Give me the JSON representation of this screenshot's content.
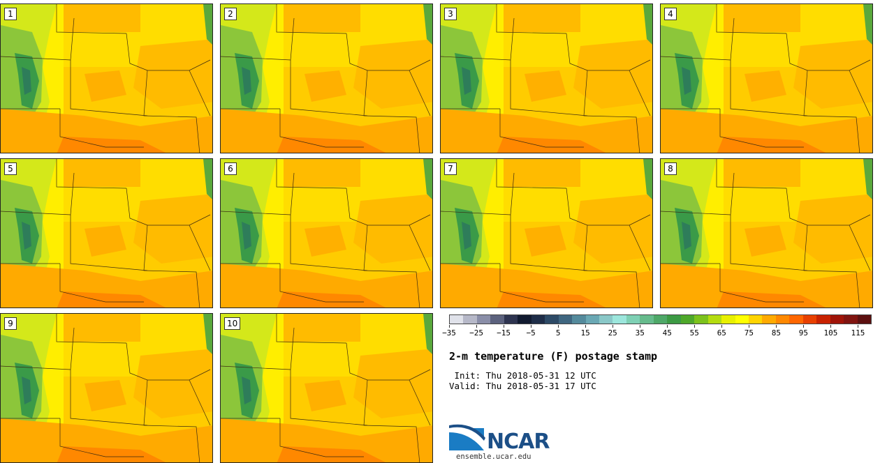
{
  "members": [
    "1",
    "2",
    "3",
    "4",
    "5",
    "6",
    "7",
    "8",
    "9",
    "10"
  ],
  "colorbar": {
    "colors": [
      "#e0e2ea",
      "#b6b8c8",
      "#8a8ea8",
      "#5c627e",
      "#2e3450",
      "#111a30",
      "#1e2d48",
      "#2d4a66",
      "#3f6680",
      "#548a9c",
      "#6aa8b4",
      "#8ac8c8",
      "#9ce6dc",
      "#7ed0b4",
      "#66bb8c",
      "#4ea868",
      "#3c9a44",
      "#4ea82a",
      "#7cc21c",
      "#b4dc10",
      "#e8f000",
      "#ffff00",
      "#ffd400",
      "#ffaa00",
      "#ff8800",
      "#ff6600",
      "#e84000",
      "#c82200",
      "#a01408",
      "#801410",
      "#5c1010"
    ],
    "tick_labels": [
      "−35",
      "−25",
      "−15",
      "−5",
      "5",
      "15",
      "25",
      "35",
      "45",
      "55",
      "65",
      "75",
      "85",
      "95",
      "105",
      "115"
    ]
  },
  "title": "2-m temperature (F) postage stamp",
  "init": " Init: Thu 2018-05-31 12 UTC",
  "valid": "Valid: Thu 2018-05-31 17 UTC",
  "logo": {
    "name": "NCAR",
    "url": "ensemble.ucar.edu"
  }
}
